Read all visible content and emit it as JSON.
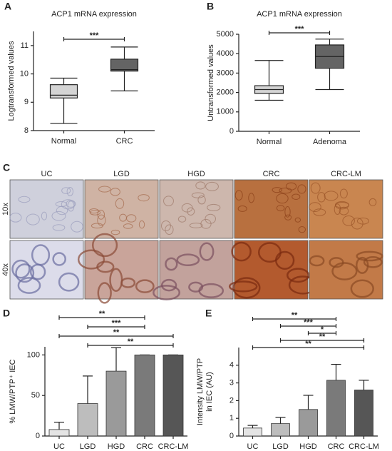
{
  "panel_labels": [
    "A",
    "B",
    "C",
    "D",
    "E"
  ],
  "chart_data": [
    {
      "type": "box",
      "title": "ACP1 mRNA expression",
      "ylabel": "Logtransformed values",
      "categories": [
        "Normal",
        "CRC"
      ],
      "colors": [
        "#d4d4d4",
        "#646464"
      ],
      "boxes": {
        "min": [
          8.25,
          9.4
        ],
        "q1": [
          9.15,
          10.1
        ],
        "median": [
          9.25,
          10.15
        ],
        "q3": [
          9.62,
          10.52
        ],
        "max": [
          9.85,
          10.95
        ]
      },
      "ylim": [
        8,
        11.5
      ],
      "yticks": [
        8,
        9,
        10,
        11
      ],
      "significance": [
        {
          "text": "***",
          "between": [
            "Normal",
            "CRC"
          ]
        }
      ]
    },
    {
      "type": "box",
      "title": "ACP1 mRNA expression",
      "ylabel": "Untransformed values",
      "categories": [
        "Normal",
        "Adenoma"
      ],
      "colors": [
        "#d4d4d4",
        "#646464"
      ],
      "boxes": {
        "min": [
          1600,
          2150
        ],
        "q1": [
          1950,
          3250
        ],
        "median": [
          2150,
          3850
        ],
        "q3": [
          2350,
          4450
        ],
        "max": [
          3650,
          4750
        ]
      },
      "ylim": [
        0,
        5000
      ],
      "yticks": [
        0,
        1000,
        2000,
        3000,
        4000,
        5000
      ],
      "significance": [
        {
          "text": "***",
          "between": [
            "Normal",
            "Adenoma"
          ]
        }
      ]
    },
    {
      "type": "bar",
      "ylabel": "% LMW/PTP⁺ IEC",
      "categories": [
        "UC",
        "LGD",
        "HGD",
        "CRC",
        "CRC-LM"
      ],
      "values": [
        8,
        40,
        80,
        100,
        100
      ],
      "errors": [
        9,
        34,
        29,
        0,
        0
      ],
      "colors": [
        "#e4e4e4",
        "#bdbdbd",
        "#9a9a9a",
        "#7a7a7a",
        "#565656"
      ],
      "ylim": [
        0,
        110
      ],
      "yticks": [
        0,
        50,
        100
      ],
      "significance": [
        {
          "text": "**",
          "between": [
            "UC",
            "CRC"
          ]
        },
        {
          "text": "***",
          "between": [
            "LGD",
            "CRC"
          ]
        },
        {
          "text": "**",
          "between": [
            "UC",
            "CRC-LM"
          ]
        },
        {
          "text": "**",
          "between": [
            "LGD",
            "CRC-LM"
          ]
        }
      ]
    },
    {
      "type": "bar",
      "ylabel": [
        "Intensity LMW/PTP",
        "in IEC (AU)"
      ],
      "categories": [
        "UC",
        "LGD",
        "HGD",
        "CRC",
        "CRC-LM"
      ],
      "values": [
        0.45,
        0.7,
        1.5,
        3.15,
        2.6
      ],
      "errors": [
        0.15,
        0.35,
        0.8,
        0.9,
        0.55
      ],
      "colors": [
        "#e4e4e4",
        "#bdbdbd",
        "#9a9a9a",
        "#7a7a7a",
        "#565656"
      ],
      "ylim": [
        0,
        5
      ],
      "yticks": [
        0,
        1,
        2,
        3,
        4
      ],
      "significance": [
        {
          "text": "**",
          "between": [
            "UC",
            "CRC"
          ]
        },
        {
          "text": "***",
          "between": [
            "LGD",
            "CRC"
          ]
        },
        {
          "text": "*",
          "between": [
            "HGD",
            "CRC"
          ]
        },
        {
          "text": "**",
          "between": [
            "LGD",
            "CRC-LM"
          ]
        },
        {
          "text": "**",
          "between": [
            "UC",
            "CRC-LM"
          ]
        }
      ]
    }
  ],
  "micrographs": {
    "columns": [
      "UC",
      "LGD",
      "HGD",
      "CRC",
      "CRC-LM"
    ],
    "rows": [
      "10x",
      "40x"
    ]
  }
}
